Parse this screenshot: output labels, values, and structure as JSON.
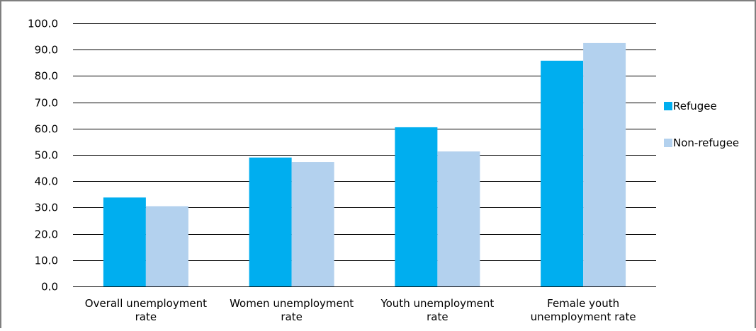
{
  "chart_data": {
    "type": "bar",
    "title": "",
    "xlabel": "",
    "ylabel": "",
    "ylim": [
      0,
      100
    ],
    "yticks": [
      "0.0",
      "10.0",
      "20.0",
      "30.0",
      "40.0",
      "50.0",
      "60.0",
      "70.0",
      "80.0",
      "90.0",
      "100.0"
    ],
    "categories": [
      [
        "Overall unemployment",
        "rate"
      ],
      [
        "Women unemployment",
        "rate"
      ],
      [
        "Youth unemployment",
        "rate"
      ],
      [
        "Female youth",
        "unemployment rate"
      ]
    ],
    "series": [
      {
        "name": "Refugee",
        "color": "#00aeef",
        "values": [
          33.8,
          49.0,
          60.5,
          85.8
        ]
      },
      {
        "name": "Non-refugee",
        "color": "#b3d1ee",
        "values": [
          30.5,
          47.3,
          51.3,
          92.5
        ]
      }
    ],
    "grid": true,
    "legend": "right"
  }
}
